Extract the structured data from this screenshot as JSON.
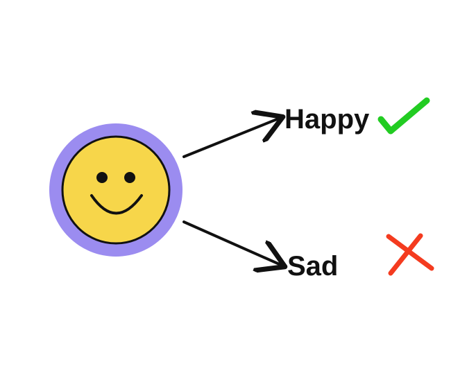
{
  "outcomes": {
    "happy": {
      "label": "Happy",
      "marker": "check-icon"
    },
    "sad": {
      "label": "Sad",
      "marker": "cross-icon"
    }
  },
  "colors": {
    "face_ring": "#9b8cf0",
    "face_fill": "#f7d64a",
    "outline": "#111111",
    "check": "#22cc22",
    "cross": "#f43b1f",
    "label_text": "#111111"
  }
}
